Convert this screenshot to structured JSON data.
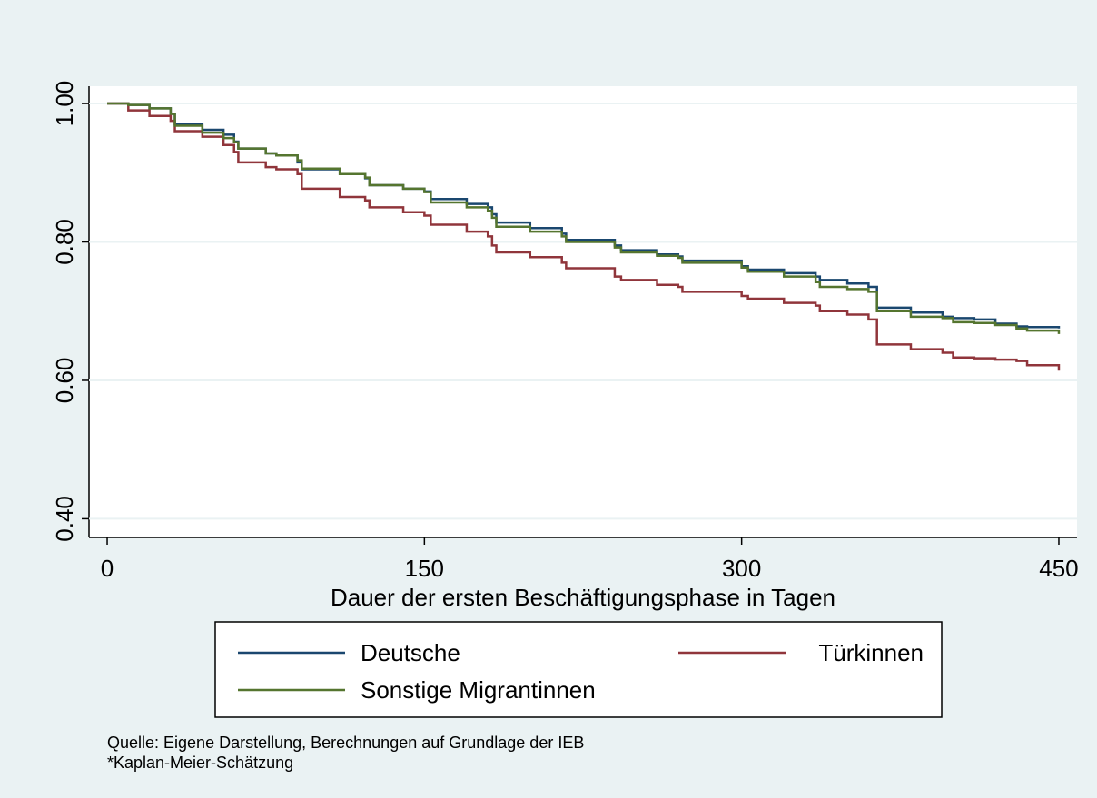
{
  "chart_data": {
    "type": "line",
    "step": "post",
    "xlabel": "Dauer der ersten Beschäftigungsphase in Tagen",
    "notes": [
      "Quelle: Eigene Darstellung, Berechnungen auf Grundlage der IEB",
      "*Kaplan-Meier-Schätzung"
    ],
    "x": [
      0,
      10,
      20,
      30,
      32,
      45,
      55,
      60,
      62,
      75,
      80,
      90,
      92,
      110,
      122,
      124,
      140,
      150,
      153,
      170,
      180,
      182,
      184,
      200,
      215,
      217,
      240,
      243,
      260,
      270,
      272,
      300,
      303,
      320,
      335,
      337,
      350,
      360,
      364,
      380,
      395,
      400,
      410,
      420,
      430,
      435,
      450
    ],
    "series": [
      {
        "name": "Deutsche",
        "color": "#1a476f",
        "values": [
          1.0,
          0.998,
          0.993,
          0.985,
          0.97,
          0.962,
          0.955,
          0.945,
          0.935,
          0.928,
          0.925,
          0.915,
          0.905,
          0.898,
          0.892,
          0.882,
          0.877,
          0.873,
          0.862,
          0.855,
          0.85,
          0.84,
          0.828,
          0.82,
          0.812,
          0.803,
          0.795,
          0.788,
          0.782,
          0.779,
          0.773,
          0.765,
          0.76,
          0.755,
          0.75,
          0.745,
          0.74,
          0.735,
          0.705,
          0.698,
          0.692,
          0.69,
          0.688,
          0.682,
          0.678,
          0.677,
          0.675
        ]
      },
      {
        "name": "Türkinnen",
        "color": "#90353b",
        "values": [
          1.0,
          0.99,
          0.982,
          0.975,
          0.96,
          0.952,
          0.94,
          0.93,
          0.915,
          0.908,
          0.905,
          0.898,
          0.877,
          0.865,
          0.86,
          0.85,
          0.843,
          0.838,
          0.825,
          0.815,
          0.808,
          0.795,
          0.785,
          0.778,
          0.77,
          0.762,
          0.75,
          0.745,
          0.738,
          0.735,
          0.728,
          0.722,
          0.718,
          0.712,
          0.708,
          0.7,
          0.695,
          0.688,
          0.652,
          0.645,
          0.64,
          0.633,
          0.632,
          0.63,
          0.628,
          0.622,
          0.614
        ]
      },
      {
        "name": "Sonstige Migrantinnen",
        "color": "#55752f",
        "values": [
          1.0,
          0.998,
          0.993,
          0.985,
          0.968,
          0.958,
          0.95,
          0.944,
          0.935,
          0.928,
          0.925,
          0.918,
          0.906,
          0.898,
          0.893,
          0.882,
          0.877,
          0.872,
          0.857,
          0.85,
          0.845,
          0.835,
          0.822,
          0.815,
          0.808,
          0.8,
          0.792,
          0.785,
          0.78,
          0.777,
          0.77,
          0.763,
          0.757,
          0.75,
          0.742,
          0.735,
          0.732,
          0.728,
          0.7,
          0.692,
          0.69,
          0.684,
          0.683,
          0.68,
          0.675,
          0.672,
          0.667
        ]
      }
    ],
    "xlim": [
      -8.6,
      458.6
    ],
    "xticks": [
      0,
      150,
      300,
      450
    ],
    "ylim": [
      0.373,
      1.025
    ],
    "yticks": [
      {
        "value": 0.4,
        "label": "0.40"
      },
      {
        "value": 0.6,
        "label": "0.60"
      },
      {
        "value": 0.8,
        "label": "0.80"
      },
      {
        "value": 1.0,
        "label": "1.00"
      }
    ],
    "grid": true,
    "legend": "bottom"
  }
}
